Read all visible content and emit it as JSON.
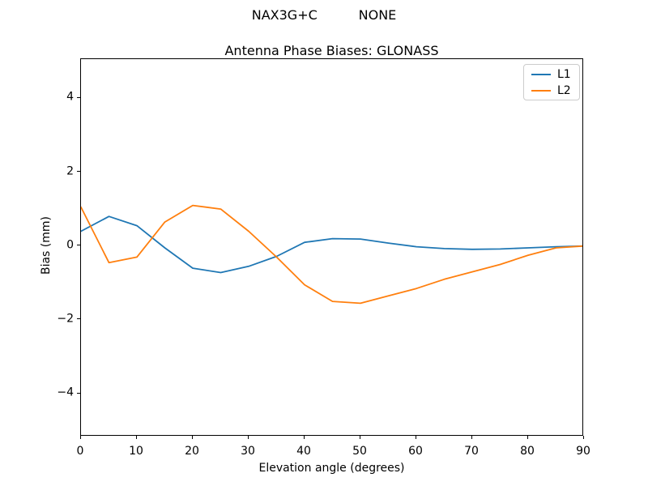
{
  "header": {
    "suptitle": "NAX3G+C          NONE"
  },
  "chart_data": {
    "type": "line",
    "title": "Antenna Phase Biases: GLONASS",
    "xlabel": "Elevation angle (degrees)",
    "ylabel": "Bias (mm)",
    "xlim": [
      0,
      90
    ],
    "ylim": [
      -5.16,
      5.06
    ],
    "grid": false,
    "x": [
      0,
      5,
      10,
      15,
      20,
      25,
      30,
      35,
      40,
      45,
      50,
      55,
      60,
      65,
      70,
      75,
      80,
      85,
      90
    ],
    "series": [
      {
        "name": "L1",
        "color": "#1f77b4",
        "values": [
          0.4,
          0.8,
          0.55,
          -0.05,
          -0.6,
          -0.72,
          -0.55,
          -0.28,
          0.1,
          0.2,
          0.19,
          0.08,
          -0.02,
          -0.07,
          -0.09,
          -0.08,
          -0.05,
          -0.02,
          0.0
        ]
      },
      {
        "name": "L2",
        "color": "#ff7f0e",
        "values": [
          1.05,
          -0.45,
          -0.3,
          0.65,
          1.1,
          1.0,
          0.4,
          -0.3,
          -1.05,
          -1.5,
          -1.55,
          -1.35,
          -1.15,
          -0.9,
          -0.7,
          -0.5,
          -0.25,
          -0.05,
          0.0
        ]
      }
    ],
    "xticks": [
      {
        "value": 0,
        "label": "0"
      },
      {
        "value": 10,
        "label": "10"
      },
      {
        "value": 20,
        "label": "20"
      },
      {
        "value": 30,
        "label": "30"
      },
      {
        "value": 40,
        "label": "40"
      },
      {
        "value": 50,
        "label": "50"
      },
      {
        "value": 60,
        "label": "60"
      },
      {
        "value": 70,
        "label": "70"
      },
      {
        "value": 80,
        "label": "80"
      },
      {
        "value": 90,
        "label": "90"
      }
    ],
    "yticks": [
      {
        "value": -4,
        "label": "−4"
      },
      {
        "value": -2,
        "label": "−2"
      },
      {
        "value": 0,
        "label": "0"
      },
      {
        "value": 2,
        "label": "2"
      },
      {
        "value": 4,
        "label": "4"
      }
    ],
    "legend": {
      "position": "upper right",
      "entries": [
        "L1",
        "L2"
      ]
    }
  }
}
